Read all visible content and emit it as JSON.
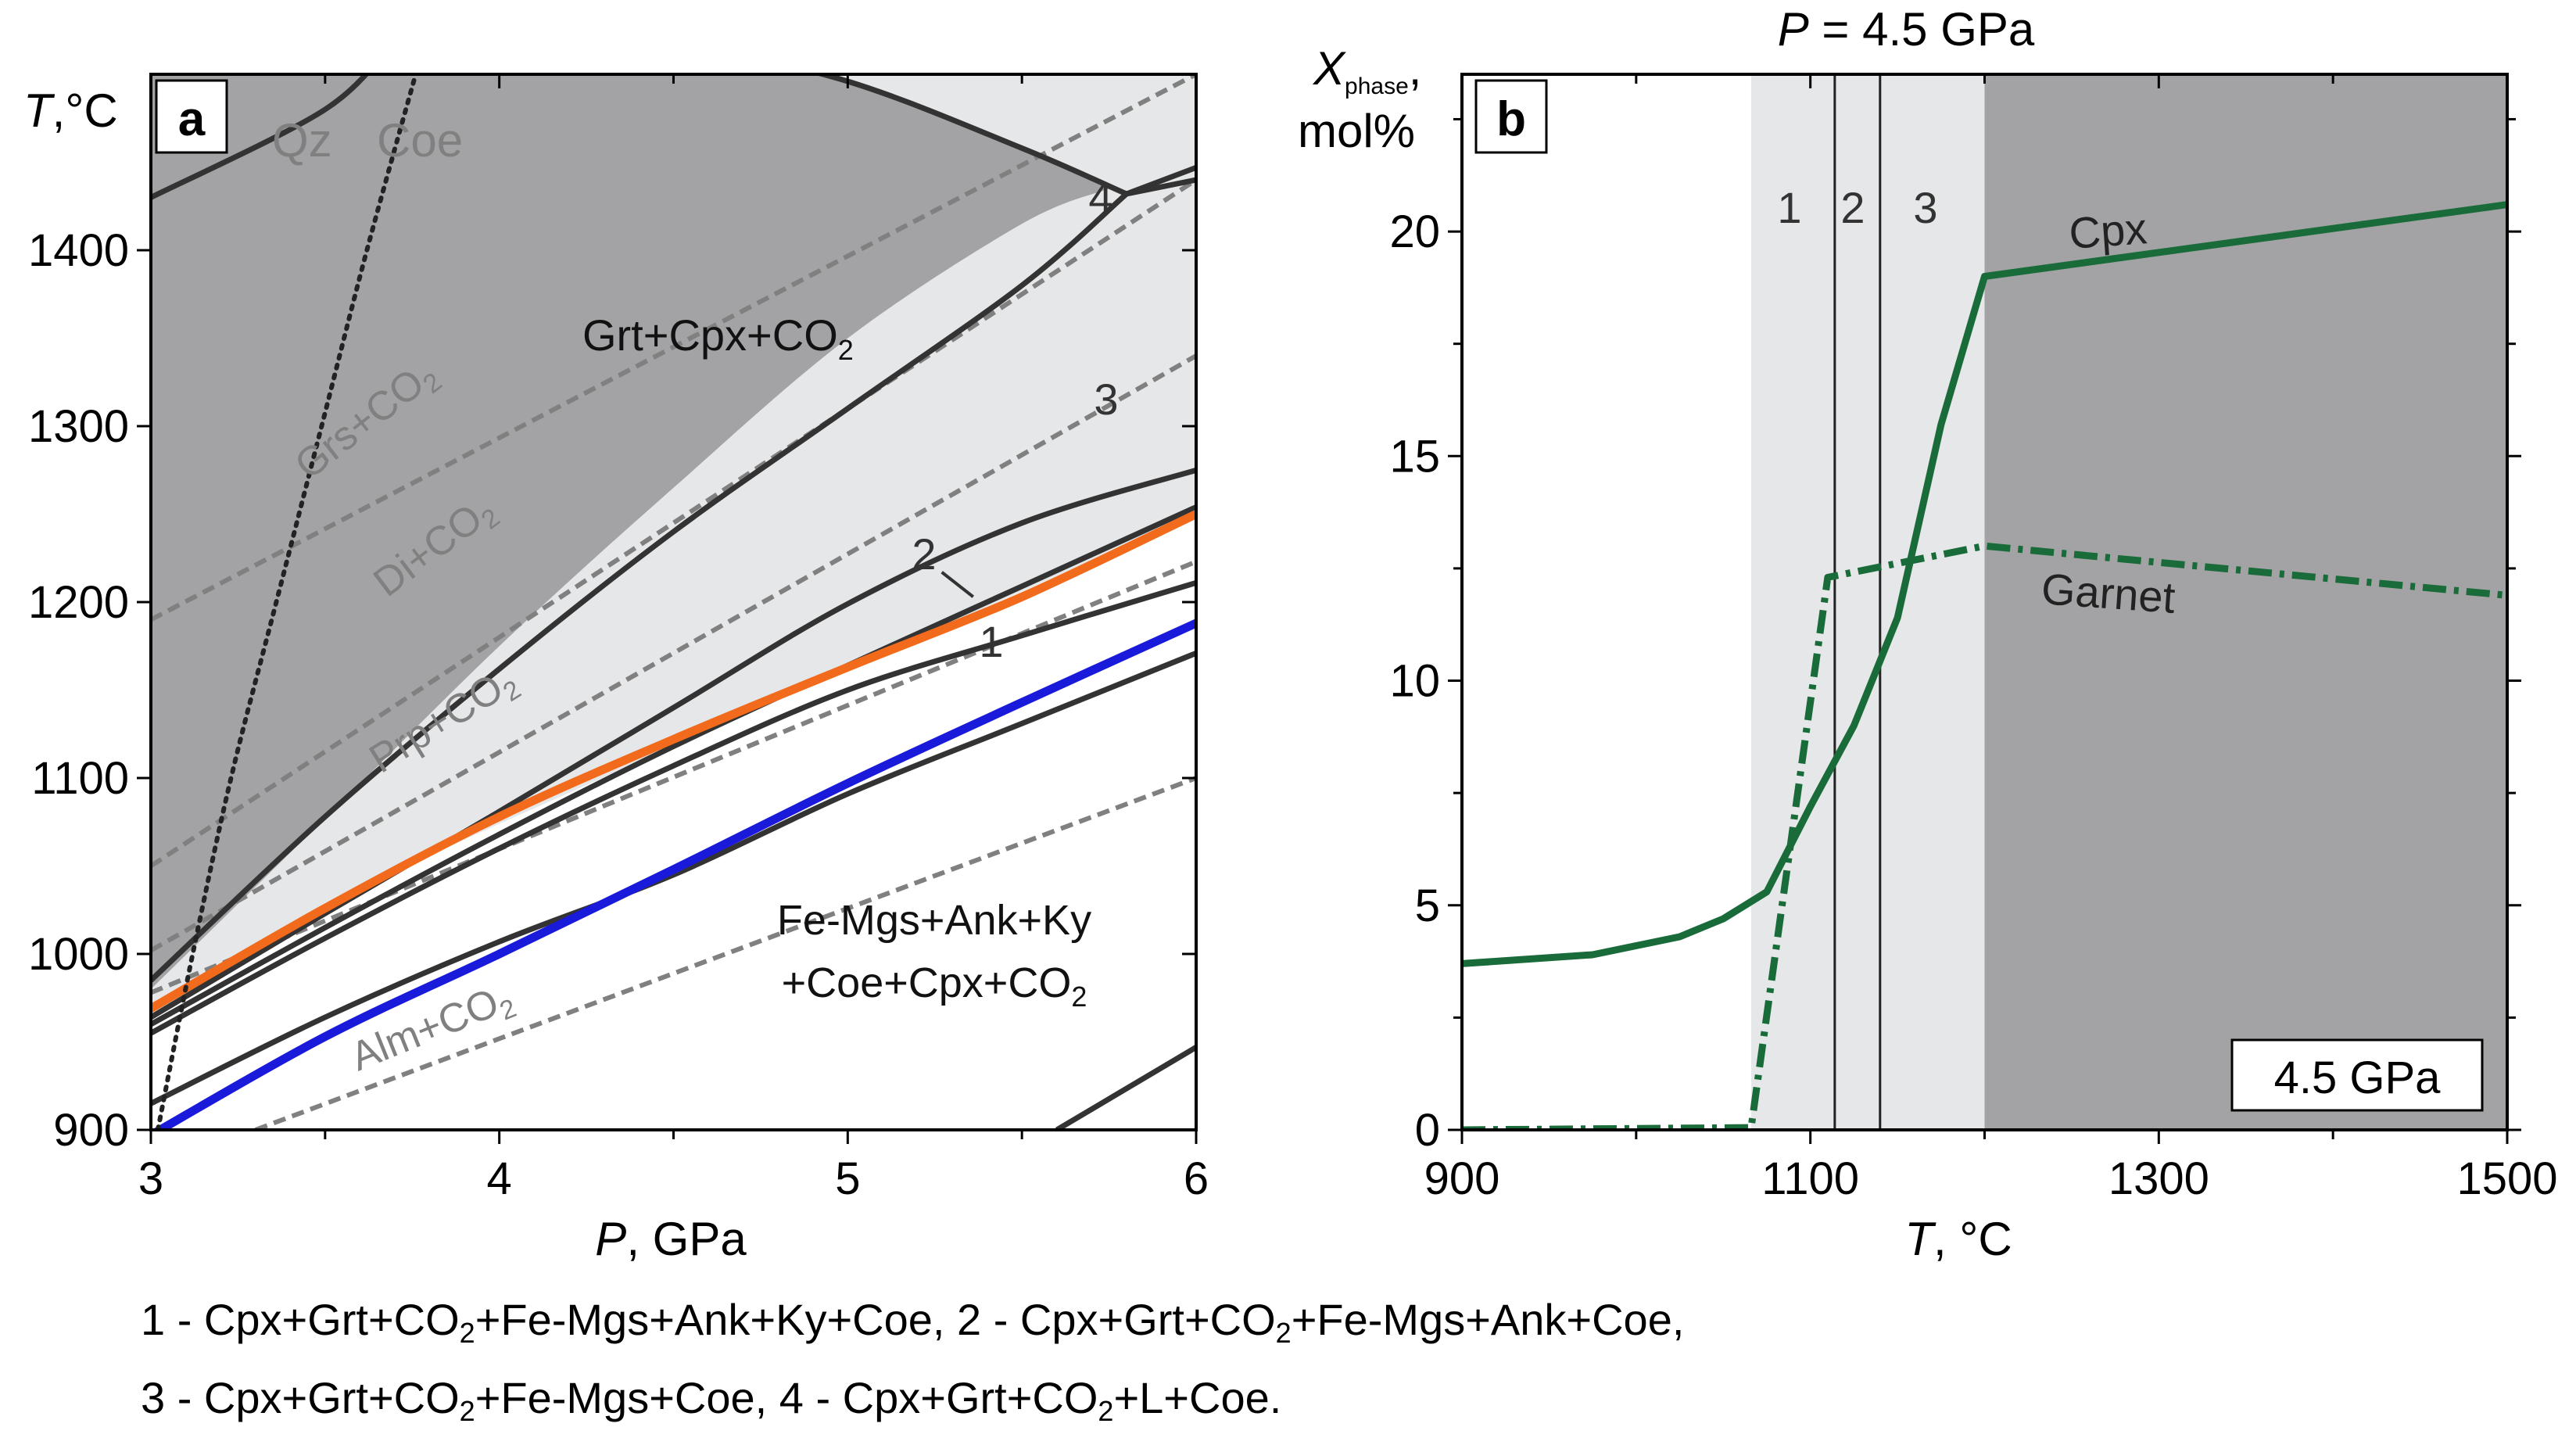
{
  "colors": {
    "dark_field": "#a3a3a5",
    "light_field": "#e6e7e8",
    "boundary": "#333333",
    "dashed": "#808080",
    "orange": "#f26a1b",
    "blue": "#1a1adb",
    "green": "#1a6b3a"
  },
  "chart_data": [
    {
      "type": "line",
      "panel_label": "a",
      "xlabel": {
        "italic": "P",
        "rest": ", GPa"
      },
      "ylabel": {
        "italic": "T",
        "rest": ",°C"
      },
      "xlim": [
        3,
        6
      ],
      "ylim": [
        900,
        1500
      ],
      "xticks": [
        3,
        4,
        5,
        6
      ],
      "yticks": [
        900,
        1000,
        1100,
        1200,
        1300,
        1400
      ],
      "dark_field_polygon": [
        [
          3,
          980
        ],
        [
          3.5,
          1077
        ],
        [
          4,
          1175
        ],
        [
          4.5,
          1265
        ],
        [
          5,
          1350
        ],
        [
          5.5,
          1415
        ],
        [
          5.75,
          1435
        ],
        [
          5.5,
          1458
        ],
        [
          5,
          1496
        ],
        [
          4.48,
          1520
        ],
        [
          3,
          1520
        ]
      ],
      "light_field_polygon": [
        [
          3,
          900
        ],
        [
          3,
          1520
        ],
        [
          6,
          1520
        ],
        [
          6,
          1250
        ],
        [
          5,
          1162
        ],
        [
          4,
          1074
        ],
        [
          3.5,
          1029
        ],
        [
          3,
          972
        ]
      ],
      "boundaries": [
        [
          [
            3,
            1430
          ],
          [
            3.5,
            1480
          ],
          [
            3.7,
            1520
          ]
        ],
        [
          [
            4.48,
            1520
          ],
          [
            5,
            1496
          ],
          [
            5.5,
            1458
          ],
          [
            5.8,
            1432
          ]
        ],
        [
          [
            5.8,
            1432
          ],
          [
            6,
            1447
          ]
        ],
        [
          [
            3,
            985
          ],
          [
            3.5,
            1078
          ],
          [
            4,
            1162
          ],
          [
            4.5,
            1240
          ],
          [
            5,
            1310
          ],
          [
            5.5,
            1380
          ],
          [
            5.8,
            1432
          ]
        ],
        [
          [
            3,
            964
          ],
          [
            3.5,
            1023
          ],
          [
            4,
            1081
          ],
          [
            4.5,
            1140
          ],
          [
            5,
            1199
          ],
          [
            5.5,
            1245
          ],
          [
            6,
            1275
          ]
        ],
        [
          [
            3,
            960
          ],
          [
            3.5,
            1015
          ],
          [
            4,
            1068
          ],
          [
            4.5,
            1118
          ],
          [
            5,
            1164
          ],
          [
            5.5,
            1209
          ],
          [
            6,
            1254
          ]
        ],
        [
          [
            3,
            955
          ],
          [
            3.5,
            1009
          ],
          [
            4,
            1060
          ],
          [
            4.5,
            1107
          ],
          [
            5,
            1150
          ],
          [
            5.5,
            1181
          ],
          [
            6,
            1211
          ]
        ],
        [
          [
            3,
            915
          ],
          [
            3.5,
            964
          ],
          [
            4,
            1007
          ],
          [
            4.5,
            1045
          ],
          [
            5,
            1091
          ],
          [
            5.5,
            1131
          ],
          [
            6,
            1171
          ]
        ],
        [
          [
            5.6,
            900
          ],
          [
            6,
            947
          ]
        ],
        [
          [
            5.8,
            1432
          ],
          [
            6,
            1440
          ]
        ]
      ],
      "dashed_lines": [
        [
          [
            3,
            1190
          ],
          [
            6,
            1500
          ]
        ],
        [
          [
            3,
            1050
          ],
          [
            6,
            1440
          ]
        ],
        [
          [
            3,
            1002
          ],
          [
            6,
            1340
          ]
        ],
        [
          [
            3,
            978
          ],
          [
            6,
            1223
          ]
        ],
        [
          [
            3.3,
            900
          ],
          [
            6,
            1100
          ]
        ]
      ],
      "qz_coe_line": [
        [
          3.02,
          900
        ],
        [
          3.12,
          1000
        ],
        [
          3.23,
          1100
        ],
        [
          3.36,
          1200
        ],
        [
          3.49,
          1300
        ],
        [
          3.62,
          1400
        ],
        [
          3.76,
          1500
        ]
      ],
      "series": [
        {
          "points": [
            [
              3,
              969
            ],
            [
              3.5,
              1026
            ],
            [
              4,
              1078
            ],
            [
              4.5,
              1122
            ],
            [
              5,
              1163
            ],
            [
              5.5,
              1203
            ],
            [
              6,
              1250
            ]
          ]
        },
        {
          "points": [
            [
              3,
              897
            ],
            [
              3.5,
              953
            ],
            [
              4,
              1000
            ],
            [
              4.5,
              1048
            ],
            [
              5,
              1097
            ],
            [
              5.5,
              1143
            ],
            [
              6,
              1188
            ]
          ]
        }
      ],
      "annotations": [
        {
          "text": "Qz",
          "x": 3.35,
          "y": 1455
        },
        {
          "text": "Coe",
          "x": 3.62,
          "y": 1455
        },
        {
          "text": "4",
          "x": 5.75,
          "y": 1430
        },
        {
          "text": "3",
          "x": 5.73,
          "y": 1305
        },
        {
          "text": "2",
          "x": 5.22,
          "y": 1226
        },
        {
          "text": "1",
          "x": 5.42,
          "y": 1168
        }
      ],
      "labels": {
        "qz": "Qz",
        "coe": "Coe",
        "grt_cpx_co2": "Grt+Cpx+CO",
        "grs_co2": "Grs+CO",
        "di_co2": "Di+CO",
        "prp_co2": "Prp+CO",
        "alm_co2": "Alm+CO",
        "assemblage_line1": "Fe-Mgs+Ank+Ky",
        "assemblage_line2": "+Coe+Cpx+CO",
        "sub2": "2",
        "n1": "1",
        "n2": "2",
        "n3": "3",
        "n4": "4"
      }
    },
    {
      "type": "line",
      "panel_label": "b",
      "title": {
        "italic": "P",
        "rest": " = 4.5 GPa"
      },
      "xlabel": {
        "italic": "T",
        "rest": ", °C"
      },
      "ylabel": {
        "italic": "X",
        "sub": "phase",
        "comma": ",",
        "line2": "mol%"
      },
      "xlim": [
        900,
        1500
      ],
      "ylim": [
        0,
        23.5
      ],
      "xticks": [
        900,
        1100,
        1300,
        1500
      ],
      "yticks": [
        0,
        5,
        10,
        15,
        20
      ],
      "shaded_regions": [
        {
          "from": 1066,
          "to": 1200,
          "shade": "light"
        },
        {
          "from": 1200,
          "to": 1500,
          "shade": "dark"
        }
      ],
      "boundaries_x": [
        1114,
        1140
      ],
      "region_labels": [
        "1",
        "2",
        "3"
      ],
      "series": [
        {
          "name": "Cpx",
          "style": "solid",
          "x": [
            900,
            975,
            1025,
            1050,
            1075,
            1100,
            1125,
            1150,
            1175,
            1200,
            1500
          ],
          "y": [
            3.7,
            3.9,
            4.3,
            4.7,
            5.3,
            7.2,
            9.0,
            11.4,
            15.7,
            19.0,
            20.6
          ]
        },
        {
          "name": "Garnet",
          "style": "dash-dot",
          "x": [
            900,
            1066,
            1110,
            1200,
            1500
          ],
          "y": [
            0,
            0.05,
            12.3,
            13.0,
            11.9
          ]
        }
      ],
      "box_label": "4.5 GPa"
    }
  ],
  "caption": {
    "line1": [
      {
        "t": "1 - Cpx+Grt+CO"
      },
      {
        "sub": "2"
      },
      {
        "t": "+Fe-Mgs+Ank+Ky+Coe, 2 - Cpx+Grt+CO"
      },
      {
        "sub": "2"
      },
      {
        "t": "+Fe-Mgs+Ank+Coe,"
      }
    ],
    "line2": [
      {
        "t": "3 - Cpx+Grt+CO"
      },
      {
        "sub": "2"
      },
      {
        "t": "+Fe-Mgs+Coe, 4 - Cpx+Grt+CO"
      },
      {
        "sub": "2"
      },
      {
        "t": "+L+Coe."
      }
    ]
  }
}
